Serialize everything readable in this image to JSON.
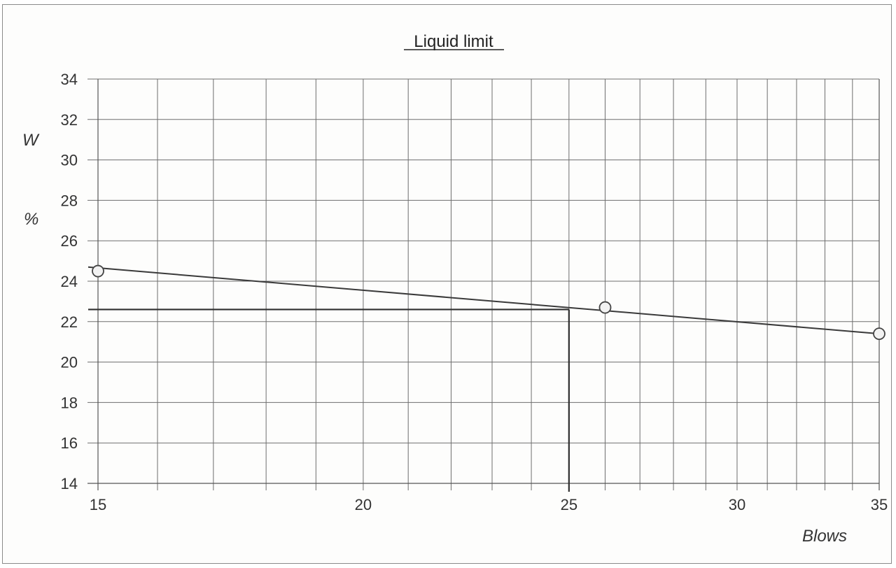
{
  "chart_data": {
    "type": "line",
    "title": "Liquid limit",
    "xlabel": "Blows",
    "ylabel_top": "W",
    "ylabel_bottom": "%",
    "xscale": "log",
    "xlim": [
      15,
      35
    ],
    "ylim": [
      14,
      34
    ],
    "xticks": [
      15,
      20,
      25,
      30,
      35
    ],
    "yticks": [
      14,
      16,
      18,
      20,
      22,
      24,
      26,
      28,
      30,
      32,
      34
    ],
    "minor_x_gridlines": [
      16,
      17,
      18,
      19,
      21,
      22,
      23,
      24,
      26,
      27,
      28,
      29,
      31,
      32,
      33,
      34
    ],
    "grid": true,
    "points": [
      {
        "x": 15,
        "y": 24.5
      },
      {
        "x": 26,
        "y": 22.7
      },
      {
        "x": 35,
        "y": 21.4
      }
    ],
    "fit_line": {
      "x": [
        15,
        35
      ],
      "y": [
        24.5,
        21.4
      ]
    },
    "reference": {
      "x": 25,
      "y": 22.6
    },
    "colors": {
      "line": "#3a3a3a",
      "marker_fill": "#f2f2f2",
      "grid": "#6e6e6e"
    }
  }
}
